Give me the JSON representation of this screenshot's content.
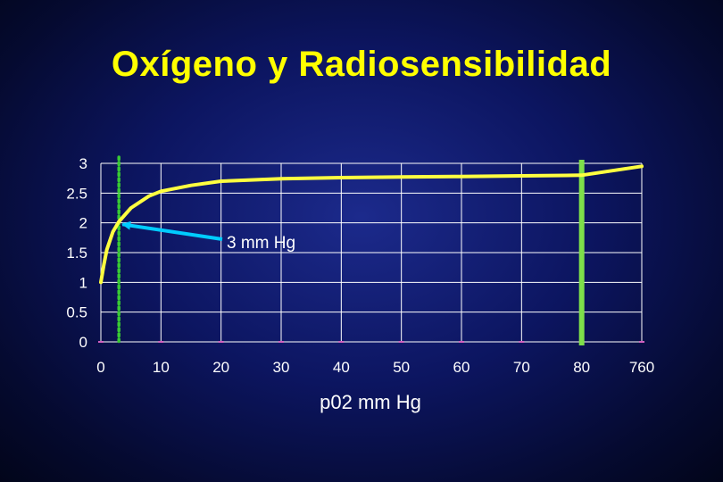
{
  "title": "Oxígeno y Radiosensibilidad",
  "colors": {
    "curve": "#ffff40",
    "grid": "#ffffff",
    "marker_line": "#7ee04a",
    "dotted_line": "#39c935",
    "arrow": "#00ccff",
    "title": "#ffff00"
  },
  "chart_data": {
    "type": "line",
    "title": "Oxígeno y Radiosensibilidad",
    "xlabel": "p02 mm Hg",
    "ylabel": "",
    "x_tick_labels": [
      "0",
      "10",
      "20",
      "30",
      "40",
      "50",
      "60",
      "70",
      "80",
      "760"
    ],
    "y_tick_labels": [
      "0",
      "0.5",
      "1",
      "1.5",
      "2",
      "2.5",
      "3"
    ],
    "ylim": [
      0,
      3
    ],
    "grid": true,
    "series": [
      {
        "x": [
          0,
          0.5,
          1,
          2,
          3,
          5,
          8,
          10,
          15,
          20,
          30,
          40,
          50,
          60,
          70,
          80,
          90
        ],
        "y": [
          1.0,
          1.3,
          1.55,
          1.85,
          2.02,
          2.25,
          2.45,
          2.53,
          2.63,
          2.7,
          2.74,
          2.76,
          2.77,
          2.78,
          2.79,
          2.8,
          2.95
        ]
      }
    ],
    "reference_lines": [
      {
        "x": 3,
        "style": "dotted"
      },
      {
        "x": 80,
        "style": "solid"
      }
    ],
    "annotations": [
      {
        "text": "3 mm Hg",
        "points_to": {
          "x": 3,
          "y": 2.02
        }
      }
    ]
  }
}
